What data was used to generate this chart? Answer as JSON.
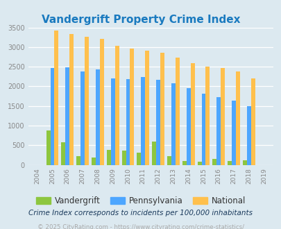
{
  "title": "Vandergrift Property Crime Index",
  "years": [
    "2004",
    "2005",
    "2006",
    "2007",
    "2008",
    "2009",
    "2010",
    "2011",
    "2012",
    "2013",
    "2014",
    "2015",
    "2016",
    "2017",
    "2018",
    "2019"
  ],
  "vandergrift": [
    0,
    870,
    570,
    220,
    180,
    380,
    360,
    310,
    600,
    230,
    100,
    80,
    150,
    100,
    110,
    0
  ],
  "pennsylvania": [
    0,
    2460,
    2480,
    2380,
    2440,
    2210,
    2190,
    2230,
    2170,
    2080,
    1950,
    1810,
    1730,
    1640,
    1490,
    0
  ],
  "national": [
    0,
    3430,
    3340,
    3270,
    3210,
    3040,
    2960,
    2910,
    2860,
    2730,
    2600,
    2500,
    2470,
    2380,
    2210,
    0
  ],
  "vandergrift_color": "#8dc63f",
  "pennsylvania_color": "#4da6ff",
  "national_color": "#ffc04d",
  "fig_bg_color": "#dce9f0",
  "plot_bg_color": "#dce9f0",
  "ylim": [
    0,
    3500
  ],
  "yticks": [
    0,
    500,
    1000,
    1500,
    2000,
    2500,
    3000,
    3500
  ],
  "xlabel_note": "Crime Index corresponds to incidents per 100,000 inhabitants",
  "footer": "© 2025 CityRating.com - https://www.cityrating.com/crime-statistics/",
  "legend_labels": [
    "Vandergrift",
    "Pennsylvania",
    "National"
  ],
  "bar_width": 0.27,
  "title_color": "#1a7abf",
  "note_color": "#1a3a5c",
  "footer_color": "#aaaaaa",
  "tick_color": "#888888"
}
